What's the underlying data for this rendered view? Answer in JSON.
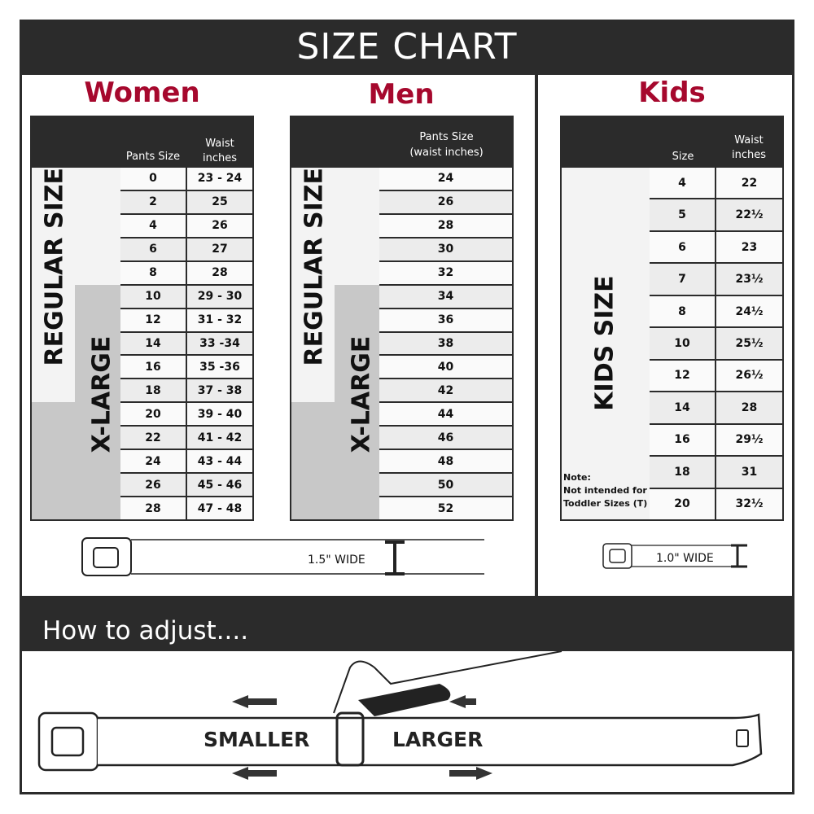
{
  "title": "SIZE CHART",
  "women": {
    "heading": "Women",
    "col1": "Pants Size",
    "col2": "Waist inches",
    "regular_label": "REGULAR SIZE",
    "xlarge_label": "X-LARGE",
    "rows": [
      [
        "0",
        "23 - 24"
      ],
      [
        "2",
        "25"
      ],
      [
        "4",
        "26"
      ],
      [
        "6",
        "27"
      ],
      [
        "8",
        "28"
      ],
      [
        "10",
        "29 - 30"
      ],
      [
        "12",
        "31 - 32"
      ],
      [
        "14",
        "33 -34"
      ],
      [
        "16",
        "35 -36"
      ],
      [
        "18",
        "37 - 38"
      ],
      [
        "20",
        "39 - 40"
      ],
      [
        "22",
        "41 - 42"
      ],
      [
        "24",
        "43 - 44"
      ],
      [
        "26",
        "45 - 46"
      ],
      [
        "28",
        "47 - 48"
      ]
    ]
  },
  "men": {
    "heading": "Men",
    "col1": "Pants Size",
    "col1_sub": "(waist inches)",
    "regular_label": "REGULAR SIZE",
    "xlarge_label": "X-LARGE",
    "rows": [
      [
        "24"
      ],
      [
        "26"
      ],
      [
        "28"
      ],
      [
        "30"
      ],
      [
        "32"
      ],
      [
        "34"
      ],
      [
        "36"
      ],
      [
        "38"
      ],
      [
        "40"
      ],
      [
        "42"
      ],
      [
        "44"
      ],
      [
        "46"
      ],
      [
        "48"
      ],
      [
        "50"
      ],
      [
        "52"
      ]
    ]
  },
  "kids": {
    "heading": "Kids",
    "col1": "Size",
    "col2": "Waist inches",
    "label": "KIDS SIZE",
    "note_title": "Note:",
    "note_line1": "Not intended for",
    "note_line2": "Toddler Sizes (T)",
    "rows": [
      [
        "4",
        "22"
      ],
      [
        "5",
        "22½"
      ],
      [
        "6",
        "23"
      ],
      [
        "7",
        "23½"
      ],
      [
        "8",
        "24½"
      ],
      [
        "10",
        "25½"
      ],
      [
        "12",
        "26½"
      ],
      [
        "14",
        "28"
      ],
      [
        "16",
        "29½"
      ],
      [
        "18",
        "31"
      ],
      [
        "20",
        "32½"
      ]
    ]
  },
  "adult_width": "1.5\" WIDE",
  "kids_width": "1.0\" WIDE",
  "how_to_adjust": "How to adjust....",
  "smaller": "SMALLER",
  "larger": "LARGER",
  "colors": {
    "dark": "#2b2b2b",
    "accent": "#a6082d",
    "xlarge_grey": "#c8c8c8"
  }
}
